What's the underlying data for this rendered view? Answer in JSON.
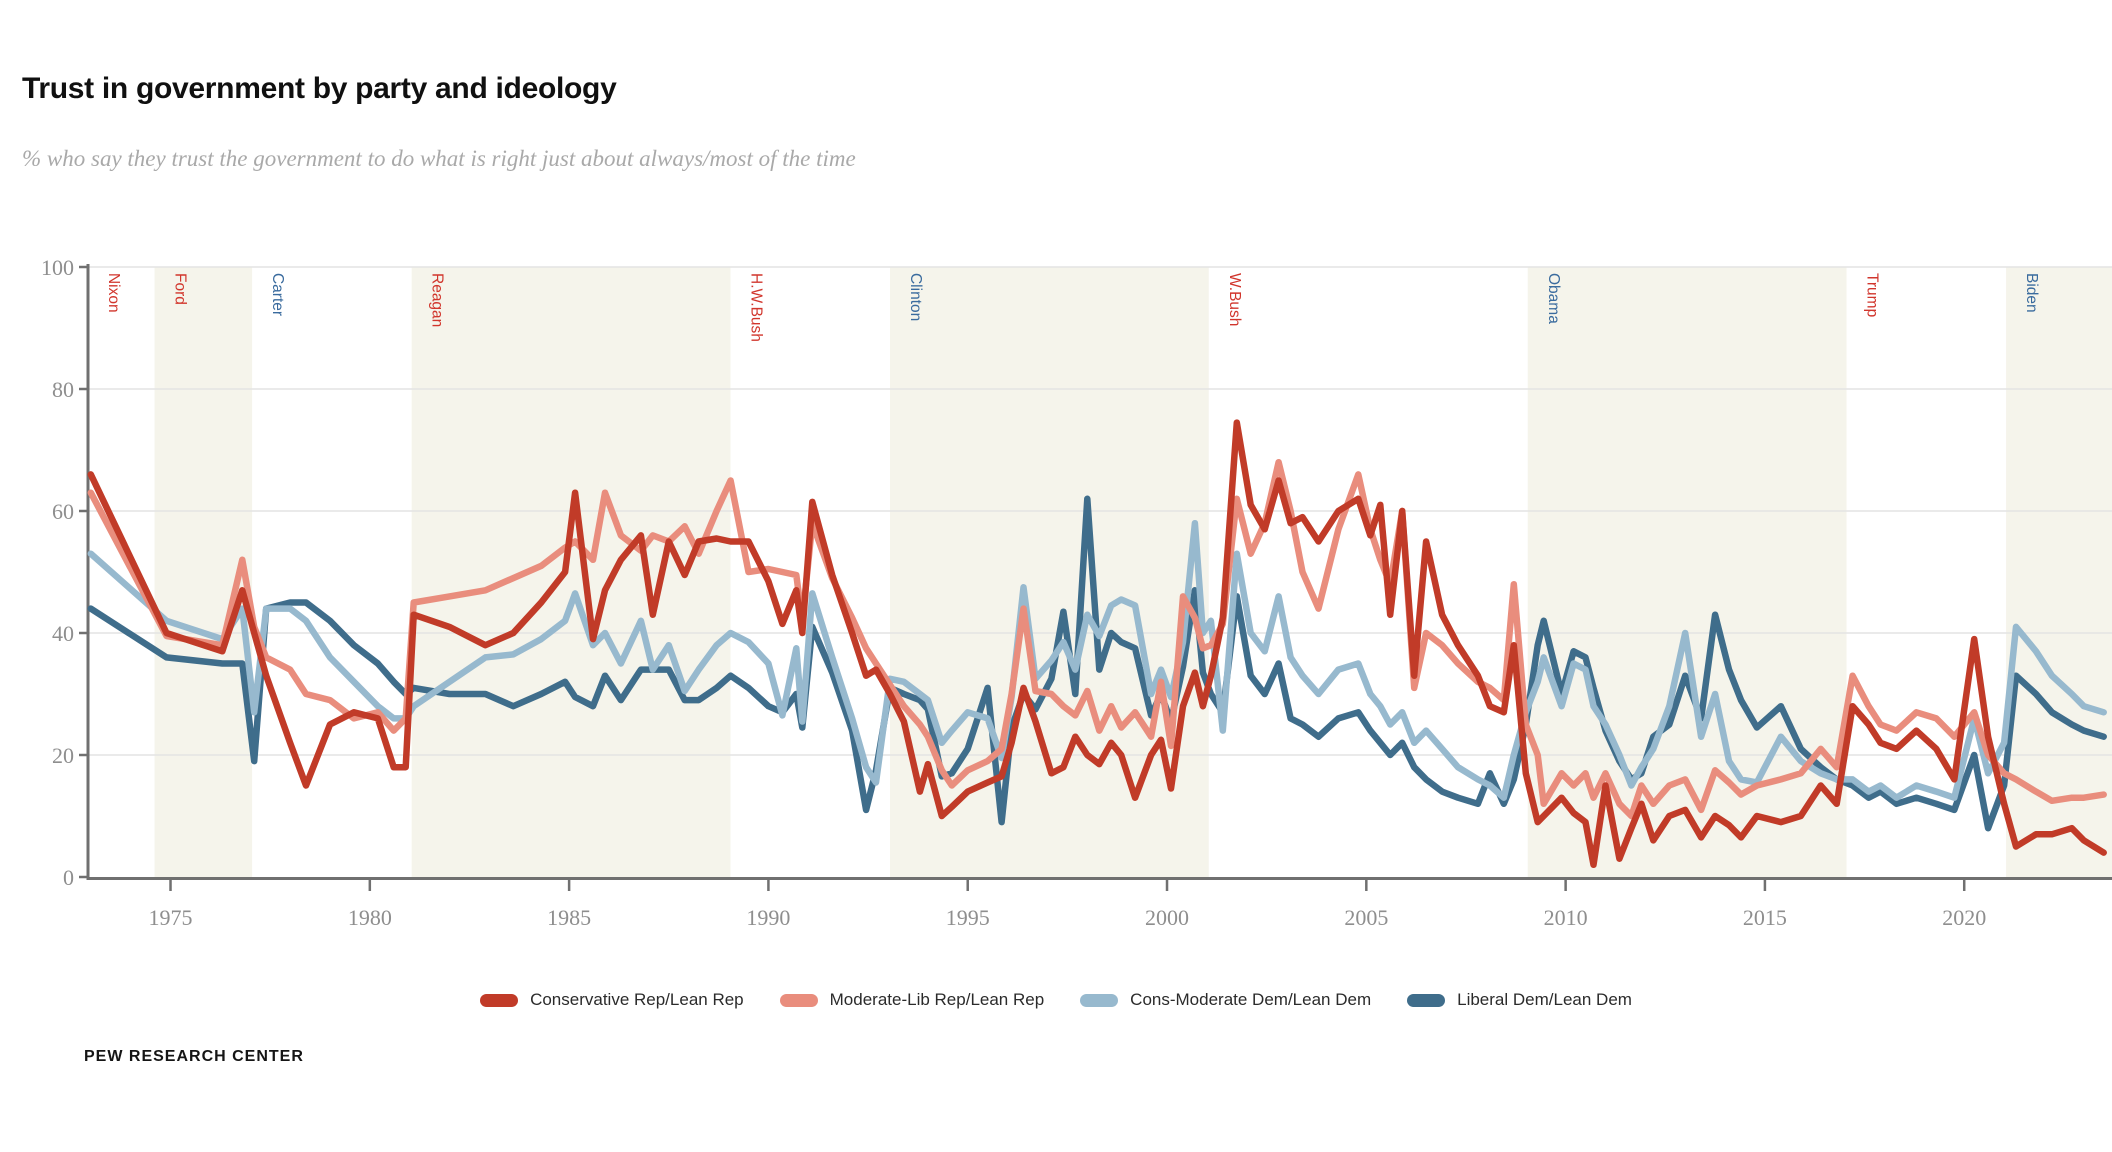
{
  "title": "Trust in government by party and ideology",
  "subtitle": "% who say they trust the government to do what is right just about always/most of the time",
  "source": "PEW RESEARCH CENTER",
  "colors": {
    "background": "#ffffff",
    "band_shade": "#f5f4eb",
    "gridline": "#e3e3e3",
    "axis": "#707070",
    "tick_text": "#8e8e8e",
    "president_rep": "#d1352c",
    "president_dem": "#3a6b9e",
    "conservative_rep": "#c13b28",
    "moderate_lib_rep": "#e98d7d",
    "cons_moderate_dem": "#97b9ce",
    "liberal_dem": "#3f6d8b"
  },
  "chart_data": {
    "type": "line",
    "title": "Trust in government by party and ideology",
    "xlabel": "",
    "ylabel": "",
    "grid": "horizontal-only",
    "legend_position": "bottom",
    "xlim": [
      1972.93,
      2023.75
    ],
    "ylim": [
      0,
      100
    ],
    "x_ticks": [
      1975,
      1980,
      1985,
      1990,
      1995,
      2000,
      2005,
      2010,
      2015,
      2020
    ],
    "y_ticks": [
      0,
      20,
      40,
      60,
      80,
      100
    ],
    "presidents": [
      {
        "name": "Nixon",
        "start": 1972.93,
        "end": 1974.6,
        "shaded": false,
        "party": "rep"
      },
      {
        "name": "Ford",
        "start": 1974.6,
        "end": 1977.05,
        "shaded": true,
        "party": "rep"
      },
      {
        "name": "Carter",
        "start": 1977.05,
        "end": 1981.05,
        "shaded": false,
        "party": "dem"
      },
      {
        "name": "Reagan",
        "start": 1981.05,
        "end": 1989.05,
        "shaded": true,
        "party": "rep"
      },
      {
        "name": "H.W.Bush",
        "start": 1989.05,
        "end": 1993.05,
        "shaded": false,
        "party": "rep"
      },
      {
        "name": "Clinton",
        "start": 1993.05,
        "end": 2001.05,
        "shaded": true,
        "party": "dem"
      },
      {
        "name": "W.Bush",
        "start": 2001.05,
        "end": 2009.05,
        "shaded": false,
        "party": "rep"
      },
      {
        "name": "Obama",
        "start": 2009.05,
        "end": 2017.05,
        "shaded": true,
        "party": "dem"
      },
      {
        "name": "Trump",
        "start": 2017.05,
        "end": 2021.05,
        "shaded": false,
        "party": "rep"
      },
      {
        "name": "Biden",
        "start": 2021.05,
        "end": 2023.75,
        "shaded": true,
        "party": "dem"
      }
    ],
    "x": [
      1973.0,
      1974.9,
      1976.3,
      1976.8,
      1977.1,
      1977.4,
      1978.0,
      1978.4,
      1979.0,
      1979.6,
      1980.2,
      1980.6,
      1980.9,
      1981.1,
      1982.0,
      1982.9,
      1983.6,
      1984.3,
      1984.9,
      1985.15,
      1985.6,
      1985.9,
      1986.3,
      1986.8,
      1987.1,
      1987.5,
      1987.9,
      1988.25,
      1988.7,
      1989.05,
      1989.5,
      1990.0,
      1990.35,
      1990.7,
      1990.85,
      1991.1,
      1991.6,
      1992.1,
      1992.45,
      1992.7,
      1993.05,
      1993.4,
      1993.8,
      1994.0,
      1994.35,
      1994.6,
      1995.0,
      1995.5,
      1995.85,
      1996.1,
      1996.4,
      1996.7,
      1997.1,
      1997.4,
      1997.7,
      1998.0,
      1998.3,
      1998.6,
      1998.85,
      1999.2,
      1999.6,
      1999.85,
      2000.1,
      2000.4,
      2000.7,
      2000.9,
      2001.1,
      2001.4,
      2001.75,
      2002.1,
      2002.45,
      2002.8,
      2003.1,
      2003.4,
      2003.8,
      2004.3,
      2004.8,
      2005.1,
      2005.35,
      2005.6,
      2005.9,
      2006.2,
      2006.5,
      2006.9,
      2007.3,
      2007.8,
      2008.1,
      2008.45,
      2008.7,
      2009.0,
      2009.3,
      2009.45,
      2009.9,
      2010.2,
      2010.5,
      2010.7,
      2011.0,
      2011.35,
      2011.65,
      2011.9,
      2012.2,
      2012.6,
      2013.0,
      2013.4,
      2013.75,
      2014.1,
      2014.4,
      2014.8,
      2015.4,
      2015.9,
      2016.4,
      2016.8,
      2017.2,
      2017.6,
      2017.9,
      2018.3,
      2018.8,
      2019.3,
      2019.75,
      2020.25,
      2020.6,
      2021.0,
      2021.3,
      2021.8,
      2022.2,
      2022.7,
      2023.0,
      2023.5
    ],
    "series": [
      {
        "name": "Conservative Rep/Lean Rep",
        "color": "#c13b28",
        "values": [
          66,
          40,
          37,
          47,
          40,
          33,
          22,
          15,
          25,
          27,
          26,
          18,
          18,
          43,
          41,
          38,
          40,
          45,
          50,
          63,
          39,
          47,
          52,
          56,
          43,
          55,
          49.5,
          55,
          55.5,
          55,
          55,
          48.5,
          41.5,
          47,
          40,
          61.5,
          49.5,
          40,
          33,
          34,
          30,
          25.5,
          14,
          18.5,
          10,
          11.5,
          14,
          15.5,
          16.5,
          22,
          31,
          25.5,
          17,
          18,
          23,
          20,
          18.5,
          22,
          20,
          13,
          20,
          22.5,
          14.5,
          28,
          33.5,
          28,
          33,
          42.5,
          74.5,
          61,
          57,
          65,
          58,
          59,
          55,
          60,
          62,
          56,
          61,
          43,
          60,
          33,
          55,
          43,
          38,
          33,
          28,
          27,
          38,
          17,
          9,
          10,
          13,
          10.5,
          9,
          2,
          15,
          3,
          8,
          12,
          6,
          10,
          11,
          6.5,
          10,
          8.5,
          6.5,
          10,
          9,
          10,
          15,
          12,
          28,
          25,
          22,
          21,
          24,
          21,
          16,
          39,
          23,
          12,
          5,
          7,
          7,
          8,
          6,
          4
        ]
      },
      {
        "name": "Moderate-Lib Rep/Lean Rep",
        "color": "#e98d7d",
        "values": [
          63,
          39.5,
          38,
          52,
          41,
          36,
          34,
          30,
          29,
          26,
          27,
          24,
          26,
          45,
          46,
          47,
          49,
          51,
          54,
          55,
          52,
          63,
          56,
          53.5,
          56,
          55,
          57.5,
          53,
          60,
          65,
          50,
          50.5,
          50,
          49.5,
          42,
          58,
          49,
          42.5,
          37.5,
          35,
          31.5,
          28,
          25,
          23,
          17.5,
          15,
          17.5,
          19,
          21,
          30,
          44,
          30.5,
          30,
          28,
          26.5,
          30.5,
          24,
          28,
          24.5,
          27,
          23,
          32,
          21.5,
          46,
          42.5,
          37.5,
          38,
          41.5,
          62,
          53,
          58,
          68,
          60,
          50,
          44,
          57,
          66,
          57,
          52,
          48,
          60,
          31,
          40,
          38,
          35,
          32,
          31,
          29,
          48,
          25,
          20,
          12,
          17,
          15,
          17,
          13,
          17,
          12,
          10,
          15,
          12,
          15,
          16,
          11,
          17.5,
          15.5,
          13.5,
          15,
          16,
          17,
          21,
          18,
          33,
          28,
          25,
          24,
          27,
          26,
          23,
          27,
          20,
          17,
          16,
          14,
          12.5,
          13,
          13,
          13.5
        ]
      },
      {
        "name": "Cons-Moderate Dem/Lean Dem",
        "color": "#97b9ce",
        "values": [
          53,
          42,
          39,
          44,
          27,
          44,
          44,
          42,
          36,
          32,
          28,
          26,
          26,
          28,
          32,
          36,
          36.5,
          39,
          42,
          46.5,
          38,
          40,
          35,
          42,
          34,
          38,
          30.5,
          34,
          38,
          40,
          38.5,
          35,
          26.5,
          37.5,
          25.5,
          46.5,
          36,
          26,
          18,
          15.5,
          32.5,
          32,
          30,
          29,
          22,
          24,
          27,
          26,
          19.5,
          29.5,
          47.5,
          32.5,
          35.5,
          38.5,
          34,
          43,
          39.5,
          44.5,
          45.5,
          44.5,
          30,
          34,
          29.5,
          38.5,
          58,
          40,
          42,
          24,
          53,
          40,
          37,
          46,
          36,
          33,
          30,
          34,
          35,
          30,
          28,
          25,
          27,
          22,
          24,
          21,
          18,
          16,
          15,
          13,
          20,
          27,
          32,
          36,
          28,
          35,
          34,
          28,
          25,
          20,
          15,
          18,
          21,
          28,
          40,
          23,
          30,
          19,
          16,
          15.5,
          23,
          19,
          17,
          16,
          16,
          14,
          15,
          13,
          15,
          14,
          13,
          26,
          17,
          22,
          41,
          37,
          33,
          30,
          28,
          27
        ]
      },
      {
        "name": "Liberal Dem/Lean Dem",
        "color": "#3f6d8b",
        "values": [
          44,
          36,
          35,
          35,
          19,
          44,
          45,
          45,
          42,
          38,
          35,
          32,
          30,
          31,
          30,
          30,
          28,
          30,
          32,
          29.5,
          28,
          33,
          29,
          34,
          34,
          34,
          29,
          29,
          31,
          33,
          31,
          28,
          27,
          30,
          24.5,
          41,
          33.5,
          24,
          11,
          17.5,
          31,
          30,
          29,
          27.5,
          16.5,
          17,
          21,
          31,
          9,
          24.5,
          30,
          27.5,
          32.5,
          43.5,
          30,
          62,
          34,
          40,
          38.5,
          37.5,
          26.5,
          30,
          25.5,
          34.5,
          47,
          33.5,
          30,
          27,
          46,
          33,
          30,
          35,
          26,
          25,
          23,
          26,
          27,
          24,
          22,
          20,
          22,
          18,
          16,
          14,
          13,
          12,
          17,
          12,
          16,
          25,
          38,
          42,
          30,
          37,
          36,
          31,
          24,
          19,
          16,
          17,
          23,
          25,
          33,
          26,
          43,
          34,
          29,
          24.5,
          28,
          21,
          18,
          16,
          15,
          13,
          14,
          12,
          13,
          12,
          11,
          20,
          8,
          15,
          33,
          30,
          27,
          25,
          24,
          23
        ]
      }
    ]
  }
}
